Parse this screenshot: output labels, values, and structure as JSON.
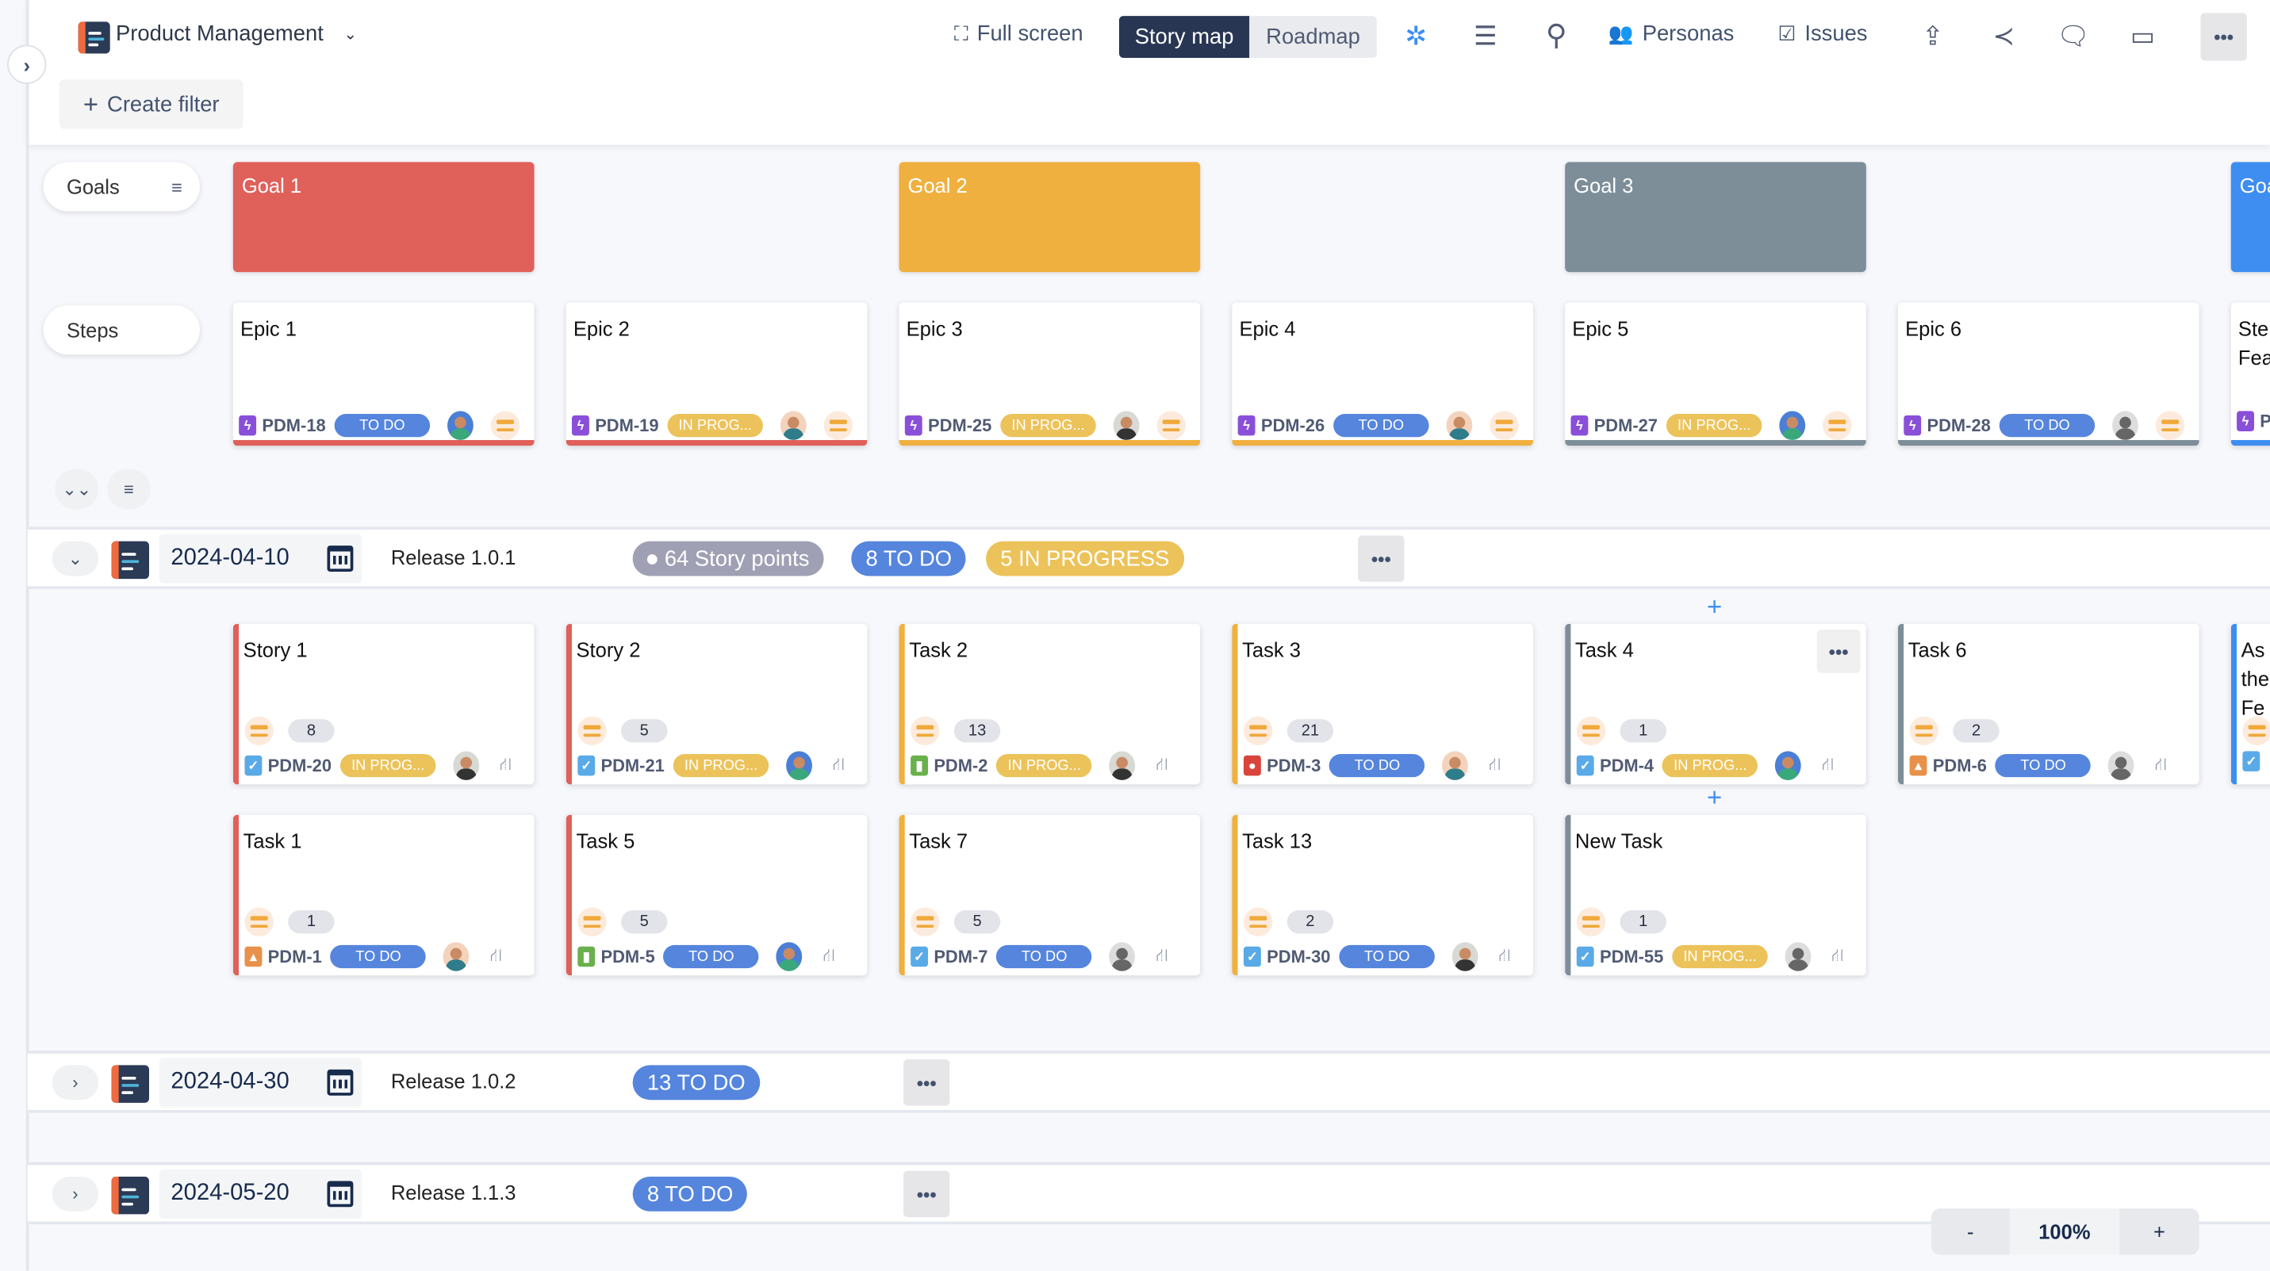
{
  "header": {
    "project_title": "Product Management",
    "full_screen_label": "Full screen",
    "view_tabs": [
      {
        "label": "Story map",
        "active": true
      },
      {
        "label": "Roadmap",
        "active": false
      }
    ],
    "personas_label": "Personas",
    "issues_label": "Issues",
    "create_filter_label": "Create filter"
  },
  "labels": {
    "goals": "Goals",
    "steps": "Steps"
  },
  "colors": {
    "red": "#e0605a",
    "yellow": "#f0b03f",
    "gray": "#7d8e99",
    "blue": "#3d8ef0",
    "todo": "#5585dd",
    "inprog": "#ecc35a",
    "points": "#a0a0b4"
  },
  "goals": [
    {
      "title": "Goal 1",
      "color": "red",
      "col": 0
    },
    {
      "title": "Goal 2",
      "color": "yellow",
      "col": 2
    },
    {
      "title": "Goal 3",
      "color": "gray",
      "col": 4
    },
    {
      "title": "Goa",
      "color": "blue",
      "col": 6
    }
  ],
  "epics": [
    {
      "title": "Epic 1",
      "key": "PDM-18",
      "status": "TO DO",
      "avatar": "blue",
      "color": "red"
    },
    {
      "title": "Epic 2",
      "key": "PDM-19",
      "status": "IN PROG...",
      "avatar": "tan",
      "color": "red"
    },
    {
      "title": "Epic 3",
      "key": "PDM-25",
      "status": "IN PROG...",
      "avatar": "photo",
      "color": "yellow"
    },
    {
      "title": "Epic 4",
      "key": "PDM-26",
      "status": "TO DO",
      "avatar": "tan",
      "color": "yellow"
    },
    {
      "title": "Epic 5",
      "key": "PDM-27",
      "status": "IN PROG...",
      "avatar": "blue",
      "color": "gray"
    },
    {
      "title": "Epic 6",
      "key": "PDM-28",
      "status": "TO DO",
      "avatar": "gear",
      "color": "gray"
    },
    {
      "title": "Ste\nFea",
      "key": "P",
      "status": "",
      "avatar": "",
      "color": "blue"
    }
  ],
  "releases": [
    {
      "date": "2024-04-10",
      "name": "Release 1.0.1",
      "expanded": true,
      "badges": [
        {
          "label": "64 Story points",
          "kind": "points"
        },
        {
          "label": "8 TO DO",
          "kind": "todo"
        },
        {
          "label": "5 IN PROGRESS",
          "kind": "inprog"
        }
      ],
      "rows": [
        [
          {
            "title": "Story 1",
            "points": "8",
            "key": "PDM-20",
            "type": "check",
            "status": "IN PROG...",
            "avatar": "photo",
            "color": "red"
          },
          {
            "title": "Story 2",
            "points": "5",
            "key": "PDM-21",
            "type": "check",
            "status": "IN PROG...",
            "avatar": "blue",
            "color": "red"
          },
          {
            "title": "Task 2",
            "points": "13",
            "key": "PDM-2",
            "type": "bookmark",
            "status": "IN PROG...",
            "avatar": "photo",
            "color": "yellow"
          },
          {
            "title": "Task 3",
            "points": "21",
            "key": "PDM-3",
            "type": "bug",
            "status": "TO DO",
            "avatar": "tan",
            "color": "yellow"
          },
          {
            "title": "Task 4",
            "points": "1",
            "key": "PDM-4",
            "type": "check",
            "status": "IN PROG...",
            "avatar": "blue",
            "color": "gray",
            "more": true
          },
          {
            "title": "Task 6",
            "points": "2",
            "key": "PDM-6",
            "type": "lock",
            "status": "TO DO",
            "avatar": "gear",
            "color": "gray"
          },
          {
            "title": "As\nthe\nFe",
            "points": "",
            "key": "",
            "type": "check",
            "status": "",
            "avatar": "",
            "color": "blue"
          }
        ],
        [
          {
            "title": "Task 1",
            "points": "1",
            "key": "PDM-1",
            "type": "lock",
            "status": "TO DO",
            "avatar": "tan",
            "color": "red"
          },
          {
            "title": "Task 5",
            "points": "5",
            "key": "PDM-5",
            "type": "bookmark",
            "status": "TO DO",
            "avatar": "blue",
            "color": "red"
          },
          {
            "title": "Task 7",
            "points": "5",
            "key": "PDM-7",
            "type": "check",
            "status": "TO DO",
            "avatar": "gear",
            "color": "yellow"
          },
          {
            "title": "Task 13",
            "points": "2",
            "key": "PDM-30",
            "type": "check",
            "status": "TO DO",
            "avatar": "photo",
            "color": "yellow"
          },
          {
            "title": "New Task",
            "points": "1",
            "key": "PDM-55",
            "type": "check",
            "status": "IN PROG...",
            "avatar": "gear",
            "color": "gray"
          }
        ]
      ]
    },
    {
      "date": "2024-04-30",
      "name": "Release 1.0.2",
      "expanded": false,
      "badges": [
        {
          "label": "13 TO DO",
          "kind": "todo"
        }
      ]
    },
    {
      "date": "2024-05-20",
      "name": "Release 1.1.3",
      "expanded": false,
      "badges": [
        {
          "label": "8 TO DO",
          "kind": "todo"
        }
      ]
    }
  ],
  "zoom": {
    "minus": "-",
    "level": "100%",
    "plus": "+"
  }
}
